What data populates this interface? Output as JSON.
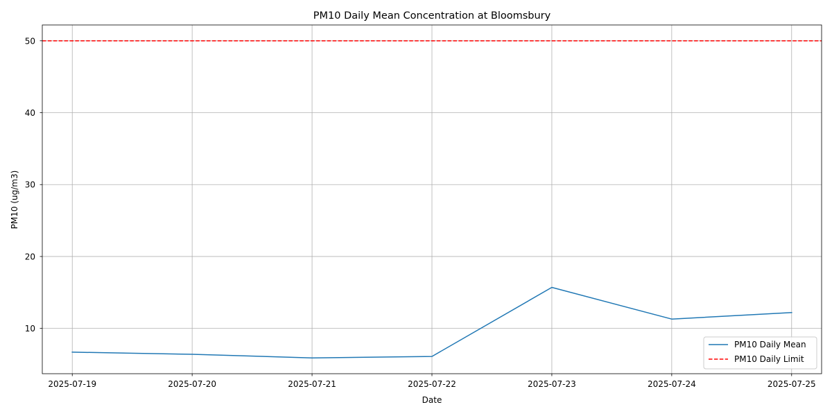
{
  "chart_data": {
    "type": "line",
    "title": "PM10 Daily Mean Concentration at Bloomsbury",
    "xlabel": "Date",
    "ylabel": "PM10 (ug/m3)",
    "x": [
      "2025-07-19",
      "2025-07-20",
      "2025-07-21",
      "2025-07-22",
      "2025-07-23",
      "2025-07-24",
      "2025-07-25"
    ],
    "xlim": [
      "2025-07-18T18:00",
      "2025-07-25T06:00"
    ],
    "ylim": [
      3.7,
      52.2
    ],
    "yticks": [
      10,
      20,
      30,
      40,
      50
    ],
    "grid": true,
    "legend_position": "lower-right",
    "series": [
      {
        "name": "PM10 Daily Mean",
        "values": [
          6.7,
          6.4,
          5.9,
          6.1,
          15.7,
          11.3,
          12.2
        ],
        "color": "#1f77b4",
        "style": "solid"
      }
    ],
    "reference_lines": [
      {
        "name": "PM10 Daily Limit",
        "value": 50,
        "color": "#ff0000",
        "style": "dashed"
      }
    ]
  }
}
